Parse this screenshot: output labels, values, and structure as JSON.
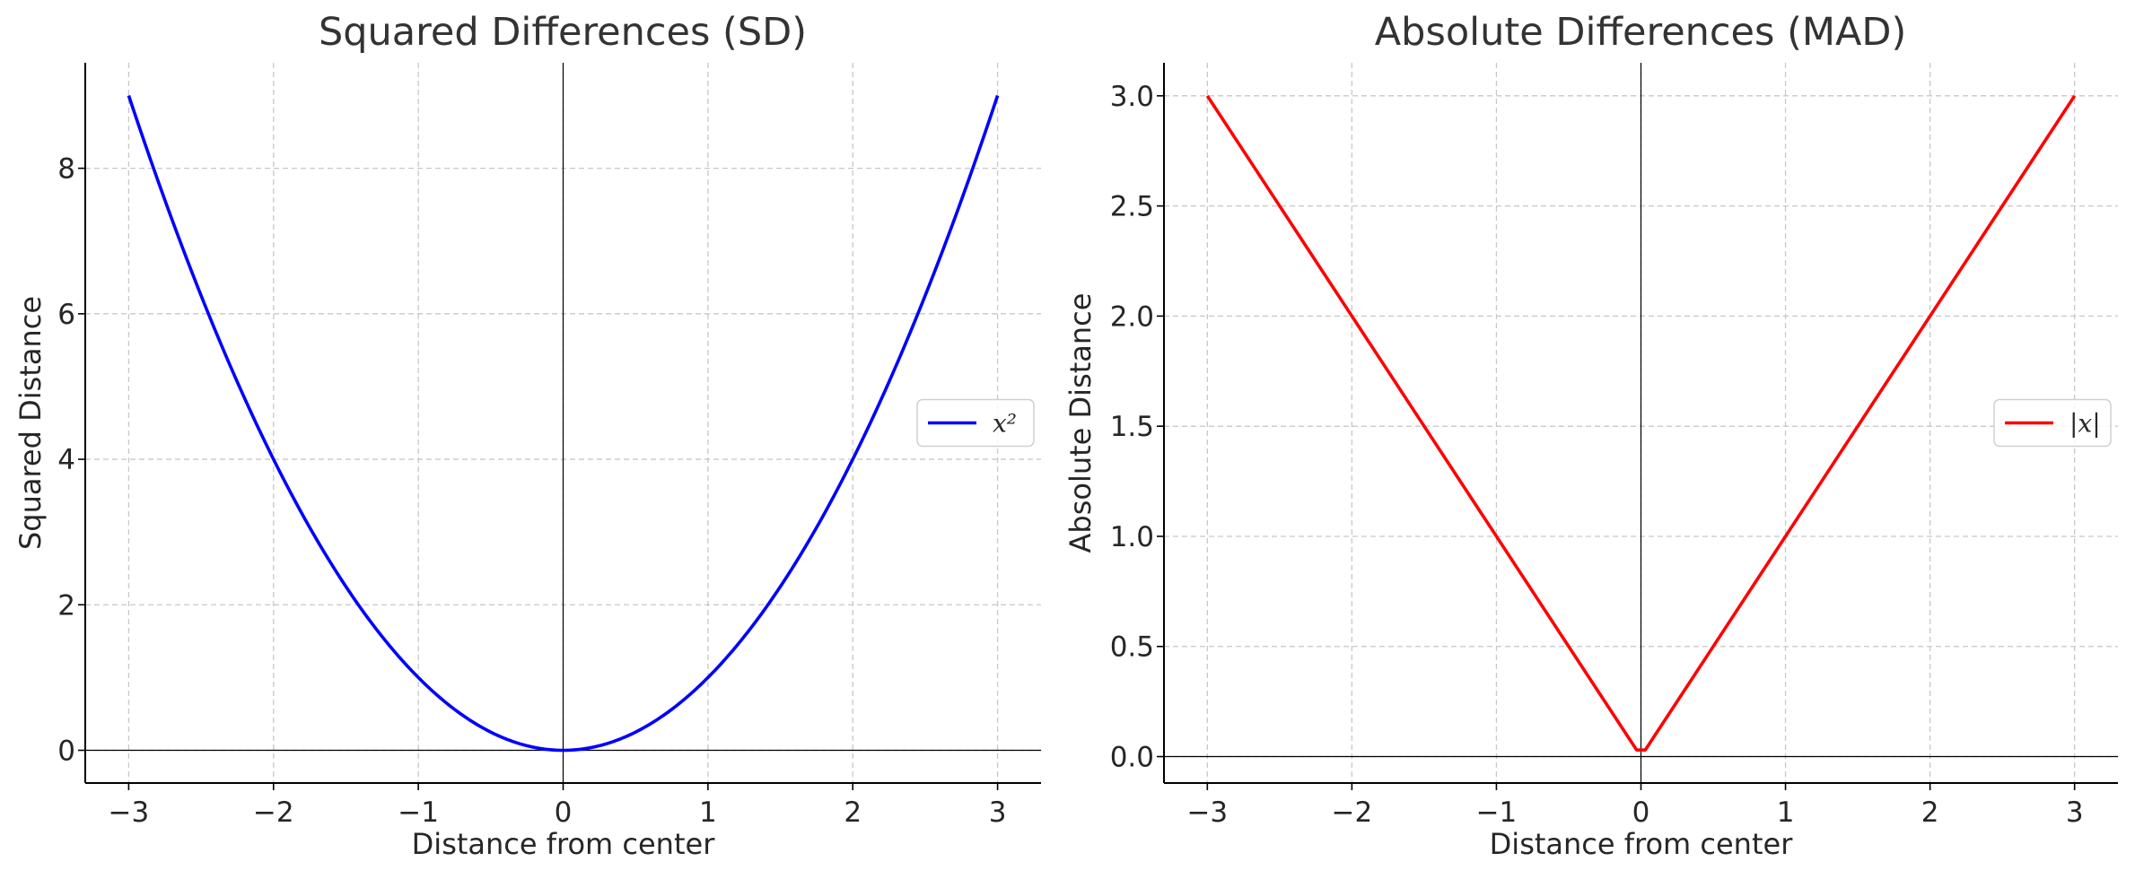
{
  "chart_data": [
    {
      "type": "line",
      "title": "Squared Differences (SD)",
      "xlabel": "Distance from center",
      "ylabel": "Squared Distance",
      "xlim": [
        -3.3,
        3.3
      ],
      "ylim": [
        -0.45,
        9.45
      ],
      "xticks": [
        -3,
        -2,
        -1,
        0,
        1,
        2,
        3
      ],
      "xtick_labels": [
        "−3",
        "−2",
        "−1",
        "0",
        "1",
        "2",
        "3"
      ],
      "yticks": [
        0,
        2,
        4,
        6,
        8
      ],
      "ytick_labels": [
        "0",
        "2",
        "4",
        "6",
        "8"
      ],
      "grid": true,
      "legend_position": "right",
      "series": [
        {
          "name": "x²",
          "color": "#0000ff",
          "function": "square",
          "x": [
            -3,
            -2.5,
            -2,
            -1.5,
            -1,
            -0.5,
            0,
            0.5,
            1,
            1.5,
            2,
            2.5,
            3
          ],
          "y": [
            9,
            6.25,
            4,
            2.25,
            1,
            0.25,
            0,
            0.25,
            1,
            2.25,
            4,
            6.25,
            9
          ]
        }
      ]
    },
    {
      "type": "line",
      "title": "Absolute Differences (MAD)",
      "xlabel": "Distance from center",
      "ylabel": "Absolute Distance",
      "xlim": [
        -3.3,
        3.3
      ],
      "ylim": [
        -0.12,
        3.15
      ],
      "xticks": [
        -3,
        -2,
        -1,
        0,
        1,
        2,
        3
      ],
      "xtick_labels": [
        "−3",
        "−2",
        "−1",
        "0",
        "1",
        "2",
        "3"
      ],
      "yticks": [
        0,
        0.5,
        1,
        1.5,
        2,
        2.5,
        3
      ],
      "ytick_labels": [
        "0.0",
        "0.5",
        "1.0",
        "1.5",
        "2.0",
        "2.5",
        "3.0"
      ],
      "grid": true,
      "legend_position": "right",
      "series": [
        {
          "name": "|x|",
          "color": "#ff0000",
          "function": "abs",
          "x": [
            -3,
            -0.03,
            0.03,
            3
          ],
          "y": [
            3,
            0.03,
            0.03,
            3
          ]
        }
      ]
    }
  ]
}
